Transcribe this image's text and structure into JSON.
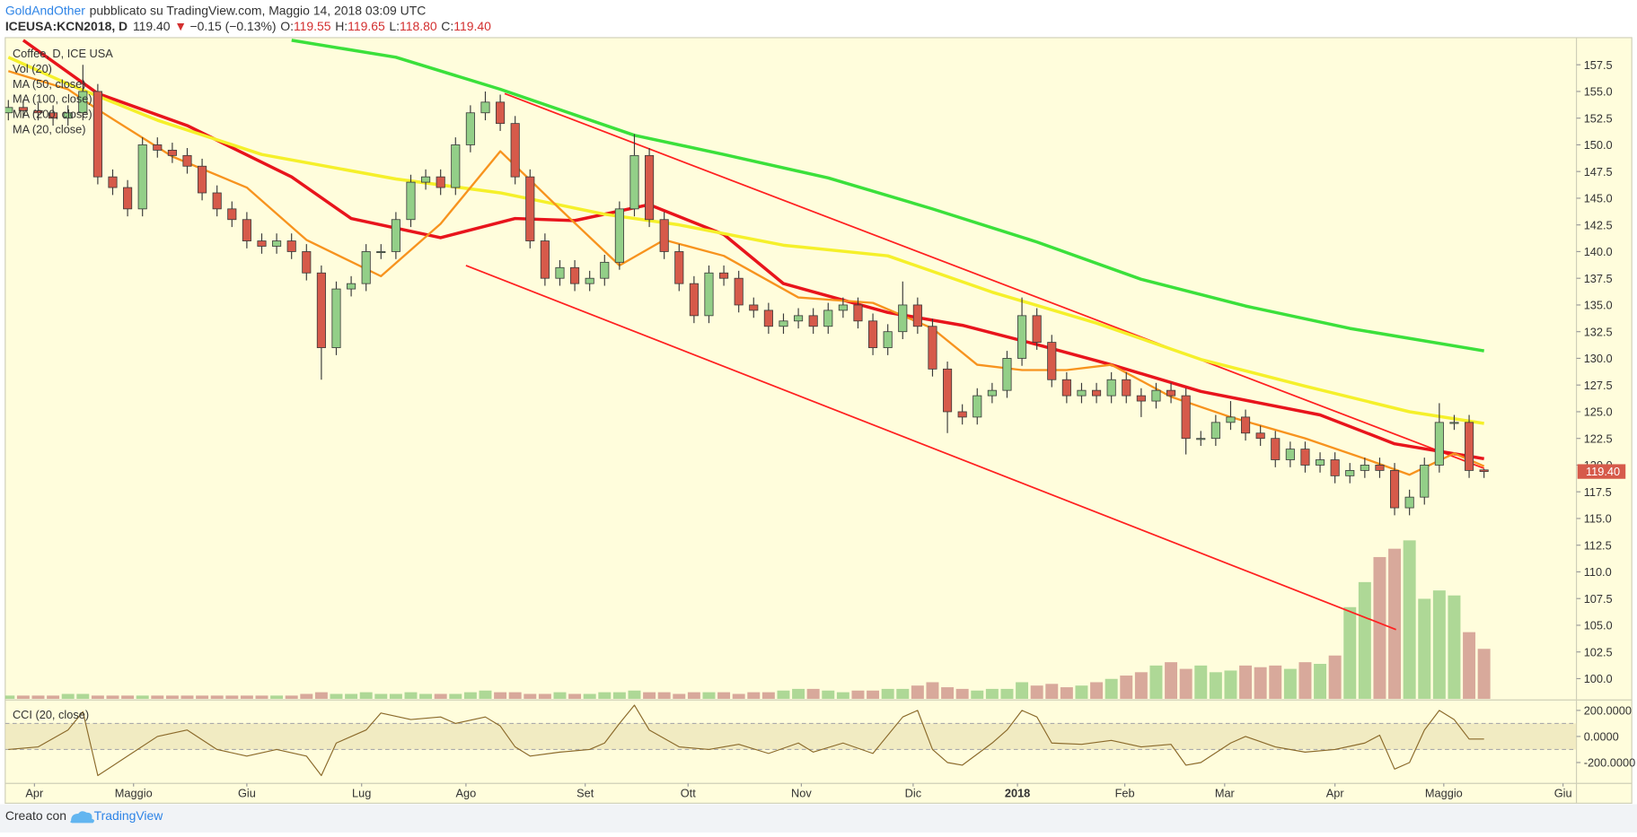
{
  "header": {
    "author": "GoldAndOther",
    "published": "pubblicato su TradingView.com, Maggio 14, 2018 03:09 UTC",
    "symbol": "ICEUSA:KCN2018, D",
    "last": "119.40",
    "arrow": "▼",
    "change": "−0.15 (−0.13%)",
    "ohlc": [
      {
        "label": "O:",
        "value": "119.55"
      },
      {
        "label": "H:",
        "value": "119.65"
      },
      {
        "label": "L:",
        "value": "118.80"
      },
      {
        "label": "C:",
        "value": "119.40"
      }
    ]
  },
  "footer": {
    "created": "Creato con",
    "brand": "TradingView"
  },
  "chart_data": [
    {
      "type": "candlestick",
      "title": "Coffee, D, ICE USA",
      "up_color": "#93cf88",
      "down_color": "#d65a4a",
      "xlim": [
        -0.21,
        105.2
      ],
      "ylim": [
        98.1,
        160.04
      ],
      "yticks": [
        {
          "value": 100,
          "label": "100.0"
        },
        {
          "value": 102.5,
          "label": "102.5"
        },
        {
          "value": 105,
          "label": "105.0"
        },
        {
          "value": 107.5,
          "label": "107.5"
        },
        {
          "value": 110,
          "label": "110.0"
        },
        {
          "value": 112.5,
          "label": "112.5"
        },
        {
          "value": 115,
          "label": "115.0"
        },
        {
          "value": 117.5,
          "label": "117.5"
        },
        {
          "value": 120,
          "label": "120.0"
        },
        {
          "value": 122.5,
          "label": "122.5"
        },
        {
          "value": 125,
          "label": "125.0"
        },
        {
          "value": 127.5,
          "label": "127.5"
        },
        {
          "value": 130,
          "label": "130.0"
        },
        {
          "value": 132.5,
          "label": "132.5"
        },
        {
          "value": 135,
          "label": "135.0"
        },
        {
          "value": 137.5,
          "label": "137.5"
        },
        {
          "value": 140,
          "label": "140.0"
        },
        {
          "value": 142.5,
          "label": "142.5"
        },
        {
          "value": 145,
          "label": "145.0"
        },
        {
          "value": 147.5,
          "label": "147.5"
        },
        {
          "value": 150,
          "label": "150.0"
        },
        {
          "value": 152.5,
          "label": "152.5"
        },
        {
          "value": 155,
          "label": "155.0"
        },
        {
          "value": 157.5,
          "label": "157.5"
        }
      ],
      "xticks": [
        {
          "value": 1.75,
          "label": "Apr"
        },
        {
          "value": 8.4,
          "label": "Maggio"
        },
        {
          "value": 16,
          "label": "Giu"
        },
        {
          "value": 23.7,
          "label": "Lug"
        },
        {
          "value": 30.7,
          "label": "Ago"
        },
        {
          "value": 38.7,
          "label": "Set"
        },
        {
          "value": 45.6,
          "label": "Ott"
        },
        {
          "value": 53.2,
          "label": "Nov"
        },
        {
          "value": 60.7,
          "label": "Dic"
        },
        {
          "value": 67.7,
          "label": "2018"
        },
        {
          "value": 74.9,
          "label": "Feb"
        },
        {
          "value": 81.6,
          "label": "Mar"
        },
        {
          "value": 89,
          "label": "Apr"
        },
        {
          "value": 96.3,
          "label": "Maggio"
        },
        {
          "value": 104.3,
          "label": "Giu"
        }
      ],
      "ohlc": [
        [
          153,
          154.2,
          152.3,
          153.5
        ],
        [
          153.5,
          154.2,
          152.5,
          153.2
        ],
        [
          153.2,
          153.9,
          152.3,
          153
        ],
        [
          153,
          153.7,
          151.8,
          152.5
        ],
        [
          152.5,
          153.7,
          151.8,
          153
        ],
        [
          153,
          157.5,
          152.3,
          155
        ],
        [
          155,
          155.7,
          146.3,
          147
        ],
        [
          147,
          147.7,
          145.3,
          146
        ],
        [
          146,
          146.7,
          143.3,
          144
        ],
        [
          144,
          150.7,
          143.3,
          150
        ],
        [
          150,
          150.7,
          148.8,
          149.5
        ],
        [
          149.5,
          150.2,
          148.3,
          149
        ],
        [
          149,
          149.7,
          147.3,
          148
        ],
        [
          148,
          148.7,
          144.8,
          145.5
        ],
        [
          145.5,
          146.2,
          143.3,
          144
        ],
        [
          144,
          144.7,
          142.3,
          143
        ],
        [
          143,
          143.7,
          140.3,
          141
        ],
        [
          141,
          141.7,
          139.8,
          140.5
        ],
        [
          140.5,
          141.7,
          139.8,
          141
        ],
        [
          141,
          141.7,
          139.3,
          140
        ],
        [
          140,
          140.7,
          137.3,
          138
        ],
        [
          138,
          138.7,
          128,
          131
        ],
        [
          131,
          137.2,
          130.3,
          136.5
        ],
        [
          136.5,
          137.7,
          135.8,
          137
        ],
        [
          137,
          140.7,
          136.3,
          140
        ],
        [
          140,
          140.7,
          139.3,
          140
        ],
        [
          140,
          143.7,
          139.3,
          143
        ],
        [
          143,
          147.2,
          142.3,
          146.5
        ],
        [
          146.5,
          147.7,
          145.8,
          147
        ],
        [
          147,
          147.7,
          145.3,
          146
        ],
        [
          146,
          150.7,
          145.3,
          150
        ],
        [
          150,
          153.7,
          149.3,
          153
        ],
        [
          153,
          155,
          152.3,
          154
        ],
        [
          154,
          154.7,
          151.3,
          152
        ],
        [
          152,
          152.7,
          146.3,
          147
        ],
        [
          147,
          147.7,
          140.3,
          141
        ],
        [
          141,
          141.7,
          136.8,
          137.5
        ],
        [
          137.5,
          139.2,
          136.8,
          138.5
        ],
        [
          138.5,
          139.2,
          136.3,
          137
        ],
        [
          137,
          138.2,
          136.3,
          137.5
        ],
        [
          137.5,
          139.7,
          136.8,
          139
        ],
        [
          139,
          144.7,
          138.3,
          144
        ],
        [
          144,
          151,
          143.3,
          149
        ],
        [
          149,
          149.7,
          142.3,
          143
        ],
        [
          143,
          143.7,
          139.3,
          140
        ],
        [
          140,
          140.7,
          136.3,
          137
        ],
        [
          137,
          137.7,
          133.3,
          134
        ],
        [
          134,
          138.7,
          133.3,
          138
        ],
        [
          138,
          138.7,
          136.8,
          137.5
        ],
        [
          137.5,
          138.2,
          134.3,
          135
        ],
        [
          135,
          135.7,
          133.8,
          134.5
        ],
        [
          134.5,
          135.2,
          132.3,
          133
        ],
        [
          133,
          134.2,
          132.3,
          133.5
        ],
        [
          133.5,
          134.7,
          132.8,
          134
        ],
        [
          134,
          134.7,
          132.3,
          133
        ],
        [
          133,
          135.2,
          132.3,
          134.5
        ],
        [
          134.5,
          135.7,
          133.8,
          135
        ],
        [
          135,
          135.7,
          132.8,
          133.5
        ],
        [
          133.5,
          134.2,
          130.3,
          131
        ],
        [
          131,
          133.2,
          130.3,
          132.5
        ],
        [
          132.5,
          137.2,
          131.8,
          135
        ],
        [
          135,
          135.7,
          132.3,
          133
        ],
        [
          133,
          133.7,
          128.3,
          129
        ],
        [
          129,
          129.7,
          123,
          125
        ],
        [
          125,
          125.7,
          123.8,
          124.5
        ],
        [
          124.5,
          127.2,
          123.8,
          126.5
        ],
        [
          126.5,
          127.7,
          125.8,
          127
        ],
        [
          127,
          130.7,
          126.3,
          130
        ],
        [
          130,
          135.7,
          129.3,
          134
        ],
        [
          134,
          134.7,
          130.8,
          131.5
        ],
        [
          131.5,
          132.2,
          127.3,
          128
        ],
        [
          128,
          128.7,
          125.8,
          126.5
        ],
        [
          126.5,
          127.7,
          125.8,
          127
        ],
        [
          127,
          127.7,
          125.8,
          126.5
        ],
        [
          126.5,
          128.7,
          125.8,
          128
        ],
        [
          128,
          128.7,
          125.8,
          126.5
        ],
        [
          126.5,
          127.2,
          124.5,
          126
        ],
        [
          126,
          127.7,
          125.3,
          127
        ],
        [
          127,
          127.7,
          125.8,
          126.5
        ],
        [
          126.5,
          127.2,
          121,
          122.5
        ],
        [
          122.5,
          123.2,
          121.8,
          122.5
        ],
        [
          122.5,
          124.7,
          121.8,
          124
        ],
        [
          124,
          126,
          123.3,
          124.5
        ],
        [
          124.5,
          125.2,
          122.3,
          123
        ],
        [
          123,
          123.7,
          121.8,
          122.5
        ],
        [
          122.5,
          123.2,
          119.8,
          120.5
        ],
        [
          120.5,
          122.2,
          119.8,
          121.5
        ],
        [
          121.5,
          122.2,
          119.3,
          120
        ],
        [
          120,
          121.2,
          119.3,
          120.5
        ],
        [
          120.5,
          121.2,
          118.3,
          119
        ],
        [
          119,
          120.2,
          118.3,
          119.5
        ],
        [
          119.5,
          120.7,
          118.8,
          120
        ],
        [
          120,
          120.7,
          118.8,
          119.5
        ],
        [
          119.5,
          120.2,
          115.3,
          116
        ],
        [
          116,
          117.7,
          115.3,
          117
        ],
        [
          117,
          120.7,
          116.3,
          120
        ],
        [
          120,
          125.8,
          119.3,
          124
        ],
        [
          124,
          124.7,
          123.3,
          124
        ],
        [
          124,
          124.7,
          118.8,
          119.5
        ],
        [
          119.55,
          119.65,
          118.8,
          119.4
        ]
      ],
      "volume": {
        "name": "Vol (20)",
        "up_color": "#a5d48e",
        "down_color": "#d4a093",
        "values": [
          2,
          2,
          2,
          2,
          3,
          3,
          2,
          2,
          2,
          2,
          2,
          2,
          2,
          2,
          2,
          2,
          2,
          2,
          2,
          2,
          3,
          4,
          3,
          3,
          4,
          3,
          3,
          4,
          3,
          3,
          3,
          4,
          5,
          4,
          4,
          3,
          3,
          4,
          3,
          3,
          4,
          4,
          5,
          4,
          4,
          3,
          4,
          4,
          4,
          3,
          4,
          4,
          5,
          6,
          6,
          5,
          4,
          5,
          5,
          6,
          6,
          8,
          10,
          7,
          6,
          5,
          6,
          6,
          10,
          8,
          9,
          7,
          8,
          10,
          12,
          14,
          16,
          20,
          22,
          18,
          20,
          16,
          17,
          20,
          19,
          20,
          18,
          22,
          21,
          26,
          55,
          70,
          85,
          90,
          95,
          60,
          65,
          62,
          40,
          30
        ]
      },
      "series": [
        {
          "name": "MA (50, close)",
          "color": "#e8141c",
          "width": 3,
          "x": [
            1,
            6,
            12,
            19,
            23,
            29,
            34,
            38,
            43,
            48,
            52,
            59,
            64,
            69,
            74,
            80,
            88,
            93,
            99
          ],
          "values": [
            159.8,
            154.8,
            151.8,
            147,
            143.1,
            141.3,
            143.1,
            142.9,
            144.4,
            141.6,
            137,
            134.3,
            133.1,
            131.3,
            129.4,
            126.9,
            124.7,
            122,
            120.6
          ]
        },
        {
          "name": "MA (100, close)",
          "color": "#f5f02a",
          "width": 3,
          "x": [
            0,
            4,
            10,
            17,
            26,
            33,
            40,
            45,
            52,
            59,
            66,
            73,
            80,
            87,
            94,
            99
          ],
          "values": [
            158.2,
            155.7,
            152.3,
            149.1,
            146.8,
            145.5,
            143.5,
            142.5,
            140.6,
            139.6,
            136.2,
            133.3,
            129.9,
            127.4,
            125,
            123.9
          ]
        },
        {
          "name": "MA (200, close)",
          "color": "#3be03b",
          "width": 3,
          "x": [
            19,
            26,
            33,
            42,
            48,
            55,
            62,
            69,
            76,
            83,
            90,
            99
          ],
          "values": [
            159.8,
            158.2,
            155.2,
            150.9,
            149.1,
            146.9,
            144,
            140.9,
            137.4,
            134.9,
            132.8,
            130.7
          ]
        },
        {
          "name": "MA (20, close)",
          "color": "#f7931e",
          "width": 2,
          "x": [
            0,
            4,
            6,
            11,
            16,
            20,
            25,
            29,
            33,
            37,
            41,
            44,
            48,
            53,
            58,
            62,
            65,
            68,
            71,
            74,
            78,
            82,
            87,
            91,
            94,
            97,
            99
          ],
          "values": [
            156.9,
            155.2,
            153.3,
            148.9,
            146,
            141.1,
            137.7,
            142.6,
            149.4,
            144,
            138.7,
            141.1,
            139.6,
            135.7,
            135.2,
            132.8,
            129.4,
            128.9,
            128.9,
            129.4,
            126.4,
            124.5,
            122.5,
            120.6,
            119.1,
            121.1,
            119.9
          ]
        }
      ],
      "trend_lines": [
        {
          "color": "#ff2020",
          "x": [
            33.3,
            99
          ],
          "values": [
            154.8,
            119.7
          ]
        },
        {
          "color": "#ff2020",
          "x": [
            30.7,
            93.1
          ],
          "values": [
            138.7,
            104.6
          ]
        }
      ],
      "price_label": {
        "value": 119.4,
        "label": "119.40",
        "color": "#d65a4a"
      }
    },
    {
      "type": "line",
      "title": "CCI (20, close)",
      "color": "#8b6a2b",
      "band": [
        -100,
        100
      ],
      "xlim": [
        -0.21,
        105.2
      ],
      "ylim": [
        -352,
        272
      ],
      "yticks": [
        {
          "value": 200,
          "label": "200.0000"
        },
        {
          "value": 0,
          "label": "0.0000"
        },
        {
          "value": -200,
          "label": "-200.0000"
        }
      ],
      "x": [
        0,
        2,
        4,
        5,
        6,
        8,
        10,
        12,
        14,
        16,
        18,
        20,
        21,
        22,
        24,
        25,
        27,
        29,
        30,
        32,
        33,
        34,
        35,
        37,
        39,
        40,
        41,
        42,
        43,
        45,
        47,
        49,
        51,
        53,
        54,
        56,
        58,
        60,
        61,
        62,
        63,
        64,
        66,
        67,
        68,
        69,
        70,
        72,
        74,
        76,
        78,
        79,
        80,
        82,
        83,
        85,
        87,
        89,
        91,
        92,
        93,
        94,
        95,
        96,
        97,
        98,
        99
      ],
      "values": [
        -100,
        -80,
        50,
        190,
        -300,
        -150,
        0,
        50,
        -100,
        -150,
        -100,
        -150,
        -300,
        -50,
        50,
        180,
        130,
        150,
        100,
        150,
        80,
        -80,
        -150,
        -120,
        -100,
        -50,
        100,
        240,
        50,
        -80,
        -100,
        -60,
        -130,
        -50,
        -120,
        -50,
        -130,
        150,
        200,
        -100,
        -200,
        -220,
        -50,
        50,
        200,
        150,
        -50,
        -60,
        -30,
        -80,
        -60,
        -220,
        -200,
        -50,
        0,
        -80,
        -120,
        -100,
        -50,
        10,
        -250,
        -200,
        50,
        200,
        130,
        -20,
        -20
      ]
    }
  ]
}
